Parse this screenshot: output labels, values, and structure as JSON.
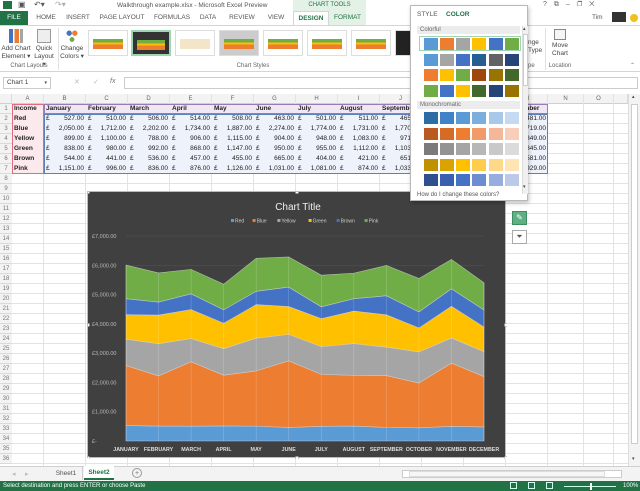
{
  "window": {
    "title": "Walkthrough example.xlsx - Microsoft Excel Preview",
    "context_group": "CHART TOOLS",
    "user": "Tim",
    "controls": [
      "?",
      "⧉",
      "–",
      "❐",
      "✕"
    ]
  },
  "tabs": [
    "FILE",
    "HOME",
    "INSERT",
    "PAGE LAYOUT",
    "FORMULAS",
    "DATA",
    "REVIEW",
    "VIEW",
    "DESIGN",
    "FORMAT"
  ],
  "active_tab": "DESIGN",
  "ribbon": {
    "add_chart_element": [
      "Add Chart",
      "Element ▾"
    ],
    "quick_layout": [
      "Quick",
      "Layout ▾"
    ],
    "change_colors": [
      "Change",
      "Colors ▾"
    ],
    "chart_layouts_label": "Chart Layouts",
    "chart_styles_label": "Chart Styles",
    "change_chart_type": [
      "nge",
      "Type"
    ],
    "type_group_label": "pe",
    "move_chart": [
      "Move",
      "Chart"
    ],
    "location_label": "Location"
  },
  "formula_bar": {
    "name_box": "Chart 1",
    "fx": "fx",
    "value": ""
  },
  "columns": [
    "A",
    "B",
    "C",
    "D",
    "E",
    "F",
    "G",
    "H",
    "I",
    "J",
    "K",
    "L",
    "M",
    "N",
    "O"
  ],
  "rows": [
    "1",
    "2",
    "3",
    "4",
    "5",
    "6",
    "7",
    "8",
    "9",
    "10",
    "11",
    "12",
    "13",
    "14",
    "15",
    "16",
    "17",
    "18",
    "19",
    "20",
    "21",
    "22",
    "23",
    "24",
    "25",
    "26",
    "27",
    "28",
    "29",
    "30",
    "31",
    "32",
    "33",
    "34",
    "35",
    "36"
  ],
  "table": {
    "header": [
      "Income",
      "January",
      "February",
      "March",
      "April",
      "May",
      "June",
      "July",
      "August",
      "September",
      "December"
    ],
    "currency": "£",
    "rows": [
      {
        "label": "Red",
        "values": [
          "527.00",
          "510.00",
          "506.00",
          "514.00",
          "508.00",
          "463.00",
          "501.00",
          "511.00",
          "465.00",
          "481.00"
        ]
      },
      {
        "label": "Blue",
        "values": [
          "2,050.00",
          "1,712.00",
          "2,202.00",
          "1,734.00",
          "1,887.00",
          "2,274.00",
          "1,774.00",
          "1,731.00",
          "1,770.00",
          "1,719.00"
        ]
      },
      {
        "label": "Yellow",
        "values": [
          "899.00",
          "1,100.00",
          "788.00",
          "906.00",
          "1,115.00",
          "904.00",
          "948.00",
          "1,083.00",
          "971.00",
          "849.00"
        ]
      },
      {
        "label": "Green",
        "values": [
          "838.00",
          "980.00",
          "992.00",
          "868.00",
          "1,147.00",
          "950.00",
          "955.00",
          "1,112.00",
          "1,103.00",
          "845.00"
        ]
      },
      {
        "label": "Brown",
        "values": [
          "544.00",
          "441.00",
          "536.00",
          "457.00",
          "455.00",
          "665.00",
          "404.00",
          "421.00",
          "651.00",
          "581.00"
        ]
      },
      {
        "label": "Pink",
        "values": [
          "1,151.00",
          "996.00",
          "836.00",
          "876.00",
          "1,126.00",
          "1,031.00",
          "1,081.00",
          "874.00",
          "1,033.00",
          "929.00"
        ]
      }
    ]
  },
  "chart_data": {
    "type": "area",
    "stacked": true,
    "title": "Chart Title",
    "categories": [
      "JANUARY",
      "FEBRUARY",
      "MARCH",
      "APRIL",
      "MAY",
      "JUNE",
      "JULY",
      "AUGUST",
      "SEPTEMBER",
      "OCTOBER",
      "NOVEMBER",
      "DECEMBER"
    ],
    "series": [
      {
        "name": "Red",
        "color": "#5b9bd5",
        "values": [
          527,
          510,
          506,
          514,
          508,
          463,
          501,
          511,
          465,
          450,
          500,
          481
        ]
      },
      {
        "name": "Blue",
        "color": "#ed7d31",
        "values": [
          2050,
          1712,
          2202,
          1734,
          1887,
          2274,
          1774,
          1731,
          1770,
          1530,
          2160,
          1719
        ]
      },
      {
        "name": "Yellow",
        "color": "#a5a5a5",
        "values": [
          899,
          1100,
          788,
          906,
          1115,
          904,
          948,
          1083,
          971,
          1060,
          860,
          849
        ]
      },
      {
        "name": "Green",
        "color": "#ffc000",
        "values": [
          838,
          980,
          992,
          868,
          1147,
          950,
          955,
          1112,
          1103,
          820,
          1080,
          845
        ]
      },
      {
        "name": "Brown",
        "color": "#4472c4",
        "values": [
          544,
          441,
          536,
          457,
          455,
          665,
          404,
          421,
          651,
          550,
          600,
          581
        ]
      },
      {
        "name": "Pink",
        "color": "#70ad47",
        "values": [
          1151,
          996,
          836,
          876,
          1126,
          1031,
          1081,
          874,
          1033,
          1140,
          1000,
          929
        ]
      }
    ],
    "y_ticks": [
      "£-",
      "£1,000.00",
      "£2,000.00",
      "£3,000.00",
      "£4,000.00",
      "£5,000.00",
      "£6,000.00",
      "£7,000.00"
    ],
    "ylim": [
      0,
      7000
    ],
    "legend": "top",
    "grid": true
  },
  "popup": {
    "tabs": [
      "STYLE",
      "COLOR"
    ],
    "active": "COLOR",
    "colorful_label": "Colorful",
    "monochromatic_label": "Monochromatic",
    "colorful": [
      [
        "#5b9bd5",
        "#ed7d31",
        "#a5a5a5",
        "#ffc000",
        "#4472c4",
        "#70ad47"
      ],
      [
        "#5b9bd5",
        "#a5a5a5",
        "#4472c4",
        "#255e91",
        "#636363",
        "#264478"
      ],
      [
        "#ed7d31",
        "#ffc000",
        "#70ad47",
        "#9e480e",
        "#997300",
        "#43682b"
      ],
      [
        "#70ad47",
        "#4472c4",
        "#ffc000",
        "#43682b",
        "#264478",
        "#997300"
      ]
    ],
    "monochromatic": [
      [
        "#2e6da4",
        "#3f82c8",
        "#5b9bd5",
        "#7cafdd",
        "#a9c9ea",
        "#c5daf0"
      ],
      [
        "#b85a22",
        "#d46b26",
        "#ed7d31",
        "#f19b6b",
        "#f4b79a",
        "#f8cebb"
      ],
      [
        "#7b7b7b",
        "#939393",
        "#a5a5a5",
        "#b7b7b7",
        "#c9c9c9",
        "#dbdbdb"
      ],
      [
        "#bf9000",
        "#d9a400",
        "#ffc000",
        "#ffcd4c",
        "#ffd98a",
        "#ffe5b4"
      ],
      [
        "#2f4f8f",
        "#3a5fb0",
        "#4472c4",
        "#6d8dd0",
        "#95aedd",
        "#bcc9e8"
      ]
    ],
    "help_link": "How do I change these colors?"
  },
  "sheets": [
    "Sheet1",
    "Sheet2"
  ],
  "active_sheet": "Sheet2",
  "status": {
    "message": "Select destination and press ENTER or choose Paste",
    "zoom": "100%"
  }
}
